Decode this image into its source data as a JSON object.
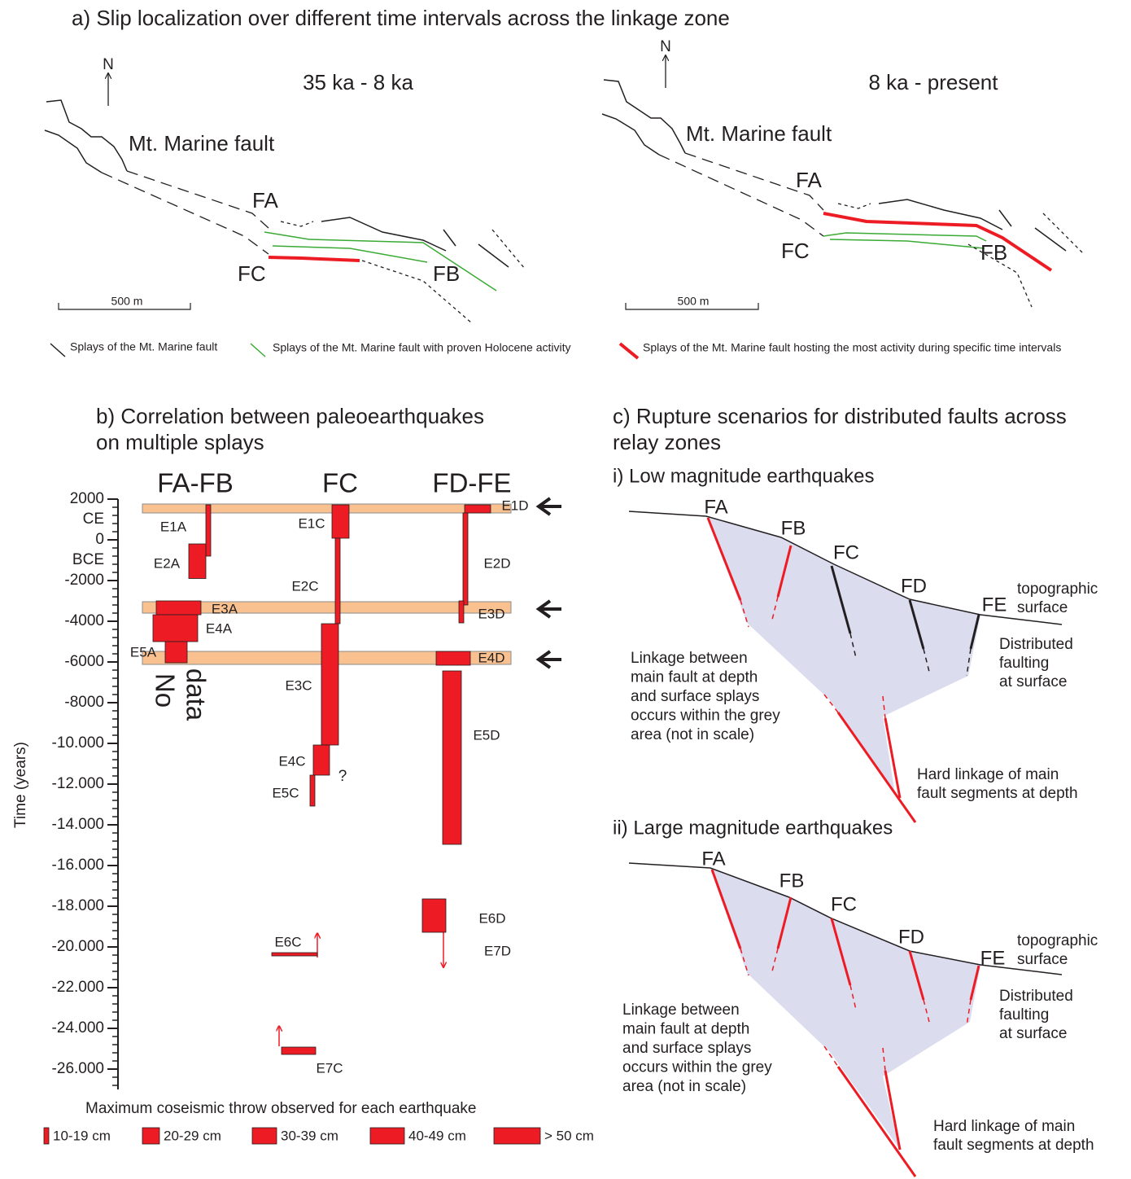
{
  "panel_a": {
    "title": "a) Slip localization over different time intervals across the linkage zone",
    "maps": [
      {
        "period": "35 ka - 8 ka",
        "north": "N",
        "fault_name": "Mt. Marine fault",
        "labels": [
          "FA",
          "FC",
          "FB"
        ],
        "scale": "500 m"
      },
      {
        "period": "8 ka - present",
        "north": "N",
        "fault_name": "Mt. Marine fault",
        "labels": [
          "FA",
          "FC",
          "FB"
        ],
        "scale": "500 m"
      }
    ],
    "legend": [
      "Splays of the Mt. Marine fault",
      "Splays of the Mt. Marine fault with proven Holocene activity",
      "Splays of the Mt. Marine fault hosting the most activity during specific time intervals"
    ]
  },
  "panel_b": {
    "title": [
      "b) Correlation between paleoearthquakes",
      "on multiple splays"
    ],
    "columns": [
      "FA-FB",
      "FC",
      "FD-FE"
    ],
    "axis_label": "Time (years)",
    "yticks": [
      2000,
      0,
      -2000,
      -4000,
      -6000,
      -8000,
      {
        "value": -10000,
        "label": "-10.000"
      },
      {
        "value": -12000,
        "label": "-12.000"
      },
      {
        "value": -14000,
        "label": "-14.000"
      },
      {
        "value": -16000,
        "label": "-16.000"
      },
      {
        "value": -18000,
        "label": "-18.000"
      },
      {
        "value": -20000,
        "label": "-20.000"
      },
      {
        "value": -22000,
        "label": "-22.000"
      },
      {
        "value": -24000,
        "label": "-24.000"
      },
      {
        "value": -26000,
        "label": "-26.000"
      }
    ],
    "era_labels": [
      "CE",
      "BCE"
    ],
    "no_data": [
      "No",
      "data"
    ],
    "question": "?",
    "intervals": [
      {
        "from": 1760,
        "to": 1320
      },
      {
        "from": -3040,
        "to": -3600
      },
      {
        "from": -5480,
        "to": -6120
      }
    ],
    "events": [
      {
        "name": "E1A",
        "from": 1720,
        "to": -800
      },
      {
        "name": "E2A",
        "from": -200,
        "to": -1900
      },
      {
        "name": "E3A",
        "from": -3000,
        "to": -3680
      },
      {
        "name": "E4A",
        "from": -3680,
        "to": -5000
      },
      {
        "name": "E5A",
        "from": -5000,
        "to": -6040
      },
      {
        "name": "E1C",
        "from": 1720,
        "to": 80
      },
      {
        "name": "E2C",
        "from": 80,
        "to": -4120
      },
      {
        "name": "E3C",
        "from": -4120,
        "to": -10080
      },
      {
        "name": "E4C",
        "from": -10080,
        "to": -11560
      },
      {
        "name": "E5C",
        "from": -11560,
        "to": -13080
      },
      {
        "name": "E6C",
        "from": -20280,
        "to": -20440
      },
      {
        "name": "E7C",
        "from": -24920,
        "to": -25280
      },
      {
        "name": "E1D",
        "from": 1720,
        "to": 1320
      },
      {
        "name": "E2D",
        "from": 1320,
        "to": -3200
      },
      {
        "name": "E3D",
        "from": -3000,
        "to": -4080
      },
      {
        "name": "E4D",
        "from": -5480,
        "to": -6160
      },
      {
        "name": "E5D",
        "from": -6440,
        "to": -14960
      },
      {
        "name": "E6D",
        "from": -17640,
        "to": -19280
      }
    ],
    "open_event": "E7D",
    "legend_title": "Maximum coseismic throw observed for each earthquake",
    "legend": [
      "10-19 cm",
      "20-29 cm",
      "30-39 cm",
      "40-49 cm",
      "> 50 cm"
    ]
  },
  "panel_c": {
    "title": [
      "c) Rupture scenarios for distributed faults across",
      "relay zones"
    ],
    "sections": [
      {
        "title": "i) Low magnitude earthquakes",
        "faults": [
          "FA",
          "FB",
          "FC",
          "FD",
          "FE"
        ],
        "surface": [
          "topographic",
          "surface"
        ],
        "distributed": [
          "Distributed",
          "faulting",
          "at surface"
        ],
        "linkage": [
          "Linkage between",
          "main fault at depth",
          "and surface splays",
          "occurs within the grey",
          "area (not in scale)"
        ],
        "hard": [
          "Hard linkage of main",
          "fault segments at depth"
        ]
      },
      {
        "title": "ii) Large magnitude earthquakes",
        "faults": [
          "FA",
          "FB",
          "FC",
          "FD",
          "FE"
        ],
        "surface": [
          "topographic",
          "surface"
        ],
        "distributed": [
          "Distributed",
          "faulting",
          "at surface"
        ],
        "linkage": [
          "Linkage between",
          "main fault at depth",
          "and surface splays",
          "occurs within the grey",
          "area (not in scale)"
        ],
        "hard": [
          "Hard linkage of main",
          "fault segments at depth"
        ]
      }
    ]
  }
}
